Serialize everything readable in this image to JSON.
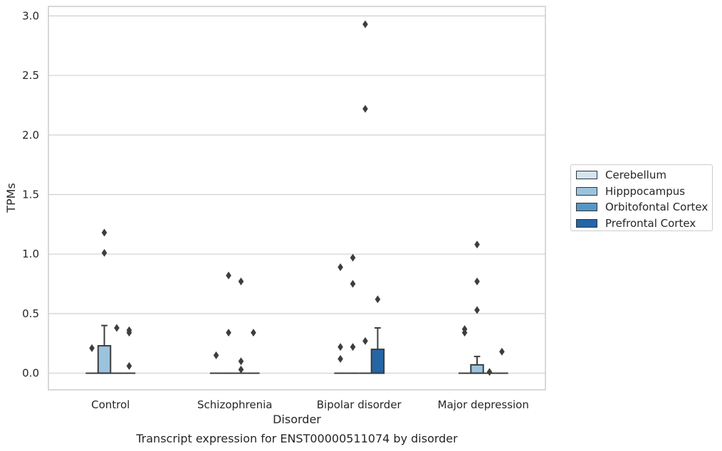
{
  "chart_data": {
    "type": "box",
    "title": "Transcript expression for ENST00000511074 by disorder",
    "xlabel": "Disorder",
    "ylabel": "TPMs",
    "ylim": [
      -0.14,
      3.08
    ],
    "yticks": [
      0.0,
      0.5,
      1.0,
      1.5,
      2.0,
      2.5,
      3.0
    ],
    "ytick_labels": [
      "0.0",
      "0.5",
      "1.0",
      "1.5",
      "2.0",
      "2.5",
      "3.0"
    ],
    "grid": true,
    "legend_position": "right",
    "categories": [
      "Control",
      "Schizophrenia",
      "Bipolar disorder",
      "Major depression"
    ],
    "series": [
      {
        "name": "Cerebellum",
        "color": "#d4e4f1",
        "boxes": [
          {
            "q1": 0,
            "median": 0,
            "q3": 0,
            "whisker_low": 0,
            "whisker_high": 0,
            "outliers": [
              0.21
            ]
          },
          {
            "q1": 0,
            "median": 0,
            "q3": 0,
            "whisker_low": 0,
            "whisker_high": 0,
            "outliers": [
              0.15
            ]
          },
          {
            "q1": 0,
            "median": 0,
            "q3": 0,
            "whisker_low": 0,
            "whisker_high": 0,
            "outliers": [
              0.89,
              0.22,
              0.12
            ]
          },
          {
            "q1": 0,
            "median": 0,
            "q3": 0,
            "whisker_low": 0,
            "whisker_high": 0,
            "outliers": [
              0.37,
              0.34
            ]
          }
        ]
      },
      {
        "name": "Hipppocampus",
        "color": "#9bc3de",
        "boxes": [
          {
            "q1": 0,
            "median": 0,
            "q3": 0.23,
            "whisker_low": 0,
            "whisker_high": 0.4,
            "outliers": [
              1.18,
              1.01
            ]
          },
          {
            "q1": 0,
            "median": 0,
            "q3": 0,
            "whisker_low": 0,
            "whisker_high": 0,
            "outliers": [
              0.82,
              0.34
            ]
          },
          {
            "q1": 0,
            "median": 0,
            "q3": 0,
            "whisker_low": 0,
            "whisker_high": 0,
            "outliers": [
              0.97,
              0.75,
              0.22
            ]
          },
          {
            "q1": 0,
            "median": 0,
            "q3": 0.07,
            "whisker_low": 0,
            "whisker_high": 0.14,
            "outliers": [
              1.08,
              0.77,
              0.53
            ]
          }
        ]
      },
      {
        "name": "Orbitofontal Cortex",
        "color": "#5696c6",
        "boxes": [
          {
            "q1": 0,
            "median": 0,
            "q3": 0,
            "whisker_low": 0,
            "whisker_high": 0,
            "outliers": [
              0.38
            ]
          },
          {
            "q1": 0,
            "median": 0,
            "q3": 0,
            "whisker_low": 0,
            "whisker_high": 0,
            "outliers": [
              0.77,
              0.1,
              0.03
            ]
          },
          {
            "q1": 0,
            "median": 0,
            "q3": 0,
            "whisker_low": 0,
            "whisker_high": 0,
            "outliers": [
              2.93,
              2.22,
              0.27
            ]
          },
          {
            "q1": 0,
            "median": 0,
            "q3": 0,
            "whisker_low": 0,
            "whisker_high": 0,
            "outliers": [
              0.01
            ]
          }
        ]
      },
      {
        "name": "Prefrontal Cortex",
        "color": "#2466a6",
        "boxes": [
          {
            "q1": 0,
            "median": 0,
            "q3": 0,
            "whisker_low": 0,
            "whisker_high": 0,
            "outliers": [
              0.36,
              0.34,
              0.06
            ]
          },
          {
            "q1": 0,
            "median": 0,
            "q3": 0,
            "whisker_low": 0,
            "whisker_high": 0,
            "outliers": [
              0.34
            ]
          },
          {
            "q1": 0,
            "median": 0,
            "q3": 0.2,
            "whisker_low": 0,
            "whisker_high": 0.38,
            "outliers": [
              0.62
            ]
          },
          {
            "q1": 0,
            "median": 0,
            "q3": 0,
            "whisker_low": 0,
            "whisker_high": 0,
            "outliers": [
              0.18
            ]
          }
        ]
      }
    ]
  }
}
